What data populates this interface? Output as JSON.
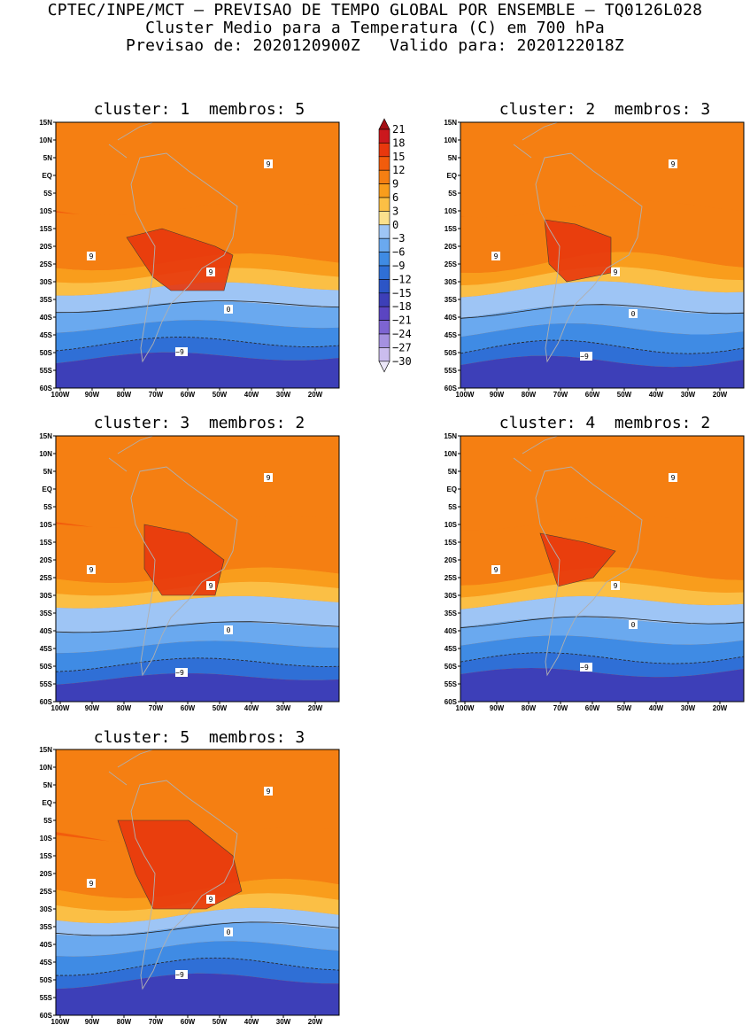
{
  "header": {
    "line1": "CPTEC/INPE/MCT – PREVISAO DE TEMPO GLOBAL POR ENSEMBLE – TQ0126L028",
    "line2": "Cluster Medio para a Temperatura (C) em 700 hPa",
    "line3": "Previsao de: 2020120900Z   Valido para: 2020122018Z"
  },
  "panels": [
    {
      "cluster": "1",
      "members": "5",
      "title": "cluster: 1  membros: 5"
    },
    {
      "cluster": "2",
      "members": "3",
      "title": "cluster: 2  membros: 3"
    },
    {
      "cluster": "3",
      "members": "2",
      "title": "cluster: 3  membros: 2"
    },
    {
      "cluster": "4",
      "members": "2",
      "title": "cluster: 4  membros: 2"
    },
    {
      "cluster": "5",
      "members": "3",
      "title": "cluster: 5  membros: 3"
    }
  ],
  "lat_labels": [
    "15N",
    "10N",
    "5N",
    "EQ",
    "5S",
    "10S",
    "15S",
    "20S",
    "25S",
    "30S",
    "35S",
    "40S",
    "45S",
    "50S",
    "55S",
    "60S"
  ],
  "lon_labels": [
    "100W",
    "90W",
    "80W",
    "70W",
    "60W",
    "50W",
    "40W",
    "30W",
    "20W"
  ],
  "contour_labels": {
    "pos9": "9",
    "zero": "0",
    "neg9": "−9"
  },
  "colorbar": {
    "labels": [
      "21",
      "18",
      "15",
      "12",
      "9",
      "6",
      "3",
      "0",
      "−3",
      "−6",
      "−9",
      "−12",
      "−15",
      "−18",
      "−21",
      "−24",
      "−27",
      "−30"
    ],
    "colors": [
      "#a50f15",
      "#cb181d",
      "#e8380d",
      "#f25c0c",
      "#f57f12",
      "#f99d1c",
      "#fbbf45",
      "#fbe08c",
      "#9ec5f5",
      "#6aa9ef",
      "#3f8be4",
      "#2f6fd6",
      "#2c55c6",
      "#3d3fb8",
      "#5b45c2",
      "#7d64d2",
      "#a591e0",
      "#cbbdee",
      "#ebe6f8"
    ]
  },
  "colors": {
    "band_9_12": "#f25c0c",
    "band_6_9": "#f57f12",
    "band_3_6": "#f99d1c",
    "band_0_3": "#fbbf45",
    "band_m3_0": "#fbe08c",
    "band_m6_m3": "#9ec5f5",
    "band_m9_m6": "#6aa9ef",
    "band_m12_m9": "#3f8be4",
    "band_m15_m12": "#2f6fd6",
    "band_m18_m15": "#3d3fb8",
    "band_12_15": "#e8380d",
    "coast": "#b0b0b0"
  }
}
